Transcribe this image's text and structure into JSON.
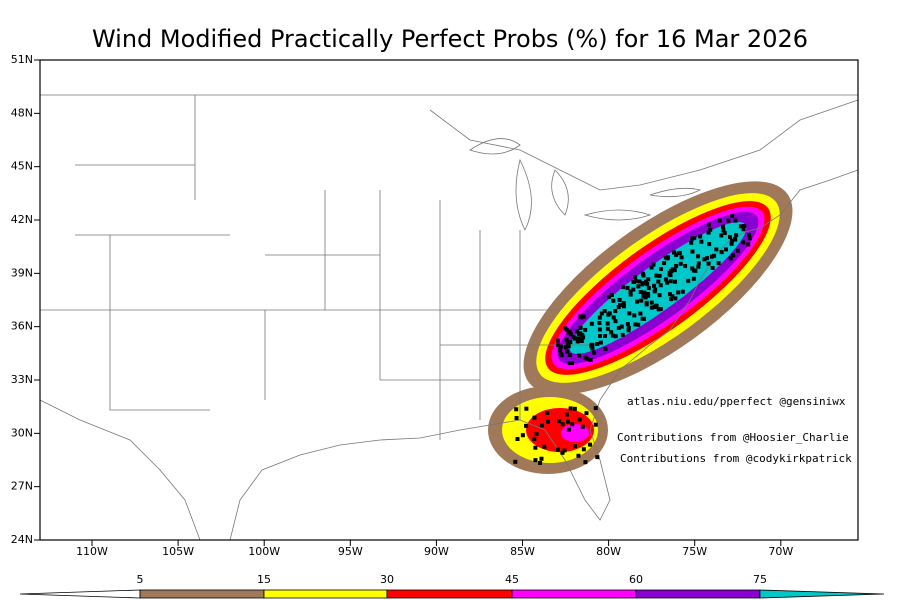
{
  "title": "Wind Modified Practically Perfect Probs (%) for 16 Mar 2026",
  "map": {
    "lat_labels": [
      "51N",
      "48N",
      "45N",
      "42N",
      "39N",
      "36N",
      "33N",
      "30N",
      "27N",
      "24N"
    ],
    "lon_labels": [
      "110W",
      "105W",
      "100W",
      "95W",
      "90W",
      "85W",
      "80W",
      "75W",
      "70W"
    ],
    "annotations": [
      "atlas.niu.edu/pperfect @gensiniwx",
      "Contributions from @Hoosier_Charlie",
      "Contributions from @codykirkpatrick"
    ]
  },
  "colorbar": {
    "levels": [
      5,
      15,
      30,
      45,
      60,
      75
    ],
    "colors": [
      "#ffffff",
      "#a0785a",
      "#ffff00",
      "#ff0000",
      "#ff00ff",
      "#8a00d0",
      "#00c8c8"
    ]
  }
}
